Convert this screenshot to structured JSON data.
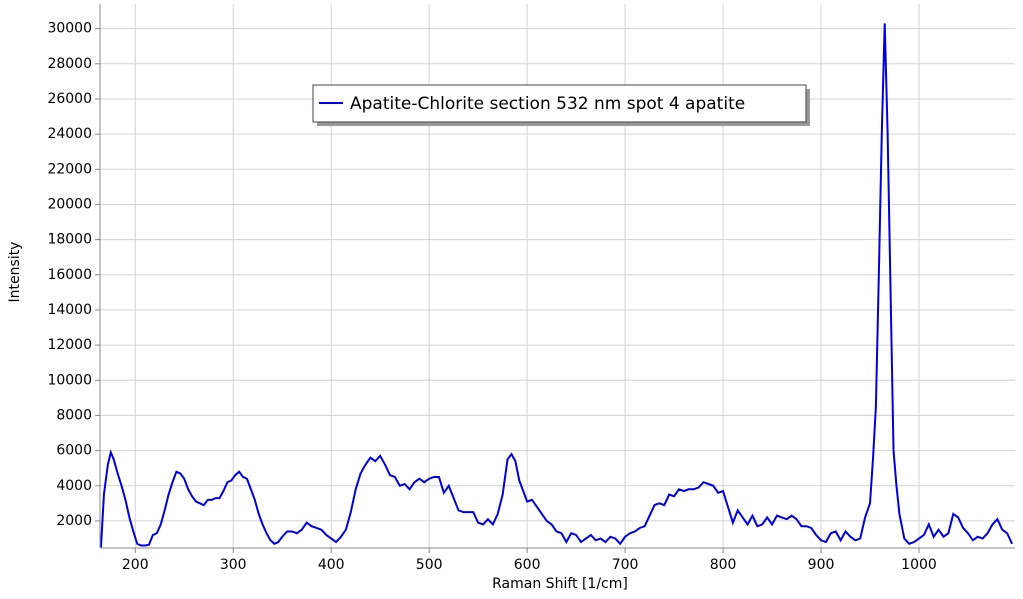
{
  "chart_data": {
    "type": "line",
    "xlabel": "Raman Shift [1/cm]",
    "ylabel": "Intensity",
    "xlim": [
      164,
      1098
    ],
    "ylim": [
      460,
      31400
    ],
    "xticks": [
      200,
      300,
      400,
      500,
      600,
      700,
      800,
      900,
      1000
    ],
    "yticks": [
      2000,
      4000,
      6000,
      8000,
      10000,
      12000,
      14000,
      16000,
      18000,
      20000,
      22000,
      24000,
      26000,
      28000,
      30000
    ],
    "grid": true,
    "legend": "top",
    "x": [
      165,
      168,
      172,
      175,
      178,
      182,
      186,
      190,
      194,
      198,
      202,
      206,
      210,
      214,
      218,
      222,
      226,
      230,
      234,
      238,
      242,
      246,
      250,
      254,
      258,
      262,
      266,
      270,
      274,
      278,
      282,
      286,
      290,
      294,
      298,
      302,
      306,
      310,
      314,
      318,
      322,
      326,
      330,
      334,
      338,
      342,
      346,
      350,
      355,
      360,
      365,
      370,
      375,
      380,
      385,
      390,
      395,
      400,
      405,
      410,
      415,
      420,
      425,
      430,
      435,
      440,
      445,
      450,
      455,
      460,
      465,
      470,
      475,
      480,
      485,
      490,
      495,
      500,
      505,
      510,
      515,
      520,
      525,
      530,
      535,
      540,
      545,
      550,
      555,
      560,
      565,
      570,
      575,
      580,
      584,
      588,
      592,
      596,
      600,
      605,
      610,
      615,
      620,
      625,
      630,
      635,
      640,
      645,
      650,
      655,
      660,
      665,
      670,
      675,
      680,
      685,
      690,
      695,
      700,
      705,
      710,
      715,
      720,
      725,
      730,
      735,
      740,
      745,
      750,
      755,
      760,
      765,
      770,
      775,
      780,
      785,
      790,
      795,
      800,
      805,
      810,
      815,
      820,
      825,
      830,
      835,
      840,
      845,
      850,
      855,
      860,
      865,
      870,
      875,
      880,
      885,
      890,
      895,
      900,
      905,
      910,
      915,
      920,
      925,
      930,
      935,
      940,
      945,
      950,
      953,
      956,
      959,
      962,
      965,
      968,
      971,
      974,
      977,
      980,
      985,
      990,
      995,
      1000,
      1005,
      1010,
      1015,
      1020,
      1025,
      1030,
      1035,
      1040,
      1045,
      1050,
      1055,
      1060,
      1065,
      1070,
      1075,
      1080,
      1085,
      1090,
      1095
    ],
    "series": [
      {
        "name": "Apatite-Chlorite section 532 nm spot 4 apatite",
        "color": "#0000dd",
        "values": [
          500,
          3500,
          5200,
          5900,
          5500,
          4700,
          4000,
          3200,
          2200,
          1400,
          700,
          600,
          600,
          650,
          1200,
          1300,
          1800,
          2600,
          3500,
          4200,
          4800,
          4700,
          4400,
          3800,
          3400,
          3100,
          3000,
          2900,
          3200,
          3200,
          3300,
          3300,
          3700,
          4200,
          4300,
          4600,
          4800,
          4500,
          4400,
          3800,
          3200,
          2400,
          1800,
          1300,
          900,
          700,
          800,
          1100,
          1400,
          1400,
          1300,
          1500,
          1900,
          1700,
          1600,
          1500,
          1200,
          1000,
          800,
          1100,
          1500,
          2500,
          3800,
          4700,
          5200,
          5600,
          5400,
          5700,
          5200,
          4600,
          4500,
          4000,
          4100,
          3800,
          4200,
          4400,
          4200,
          4400,
          4500,
          4500,
          3600,
          4000,
          3300,
          2600,
          2500,
          2500,
          2500,
          1900,
          1800,
          2100,
          1800,
          2400,
          3500,
          5500,
          5800,
          5400,
          4300,
          3700,
          3100,
          3200,
          2800,
          2400,
          2000,
          1800,
          1400,
          1300,
          800,
          1300,
          1200,
          800,
          1000,
          1200,
          900,
          1000,
          800,
          1100,
          1000,
          700,
          1100,
          1300,
          1400,
          1600,
          1700,
          2300,
          2900,
          3000,
          2900,
          3500,
          3400,
          3800,
          3700,
          3800,
          3800,
          3900,
          4200,
          4100,
          4000,
          3600,
          3700,
          2800,
          1900,
          2600,
          2200,
          1800,
          2300,
          1700,
          1800,
          2200,
          1800,
          2300,
          2200,
          2100,
          2300,
          2100,
          1700,
          1700,
          1600,
          1200,
          900,
          800,
          1300,
          1400,
          900,
          1400,
          1100,
          900,
          1000,
          2200,
          3000,
          5500,
          8500,
          16000,
          24000,
          30300,
          24000,
          15000,
          6000,
          4000,
          2400,
          1000,
          700,
          800,
          1000,
          1200,
          1800,
          1100,
          1500,
          1100,
          1300,
          2400,
          2200,
          1600,
          1300,
          900,
          1100,
          1000,
          1300,
          1800,
          2100,
          1500,
          1300,
          700
        ]
      }
    ]
  }
}
